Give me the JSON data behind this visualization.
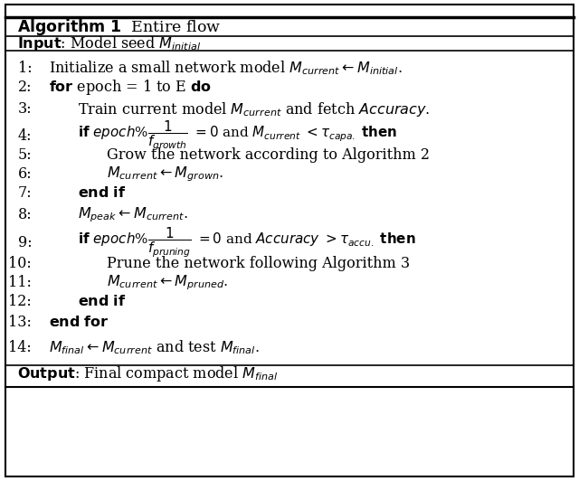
{
  "title": "Algorithm 1  Entire flow",
  "bg_color": "#ffffff",
  "border_color": "#000000",
  "figsize": [
    6.4,
    5.32
  ],
  "dpi": 100
}
